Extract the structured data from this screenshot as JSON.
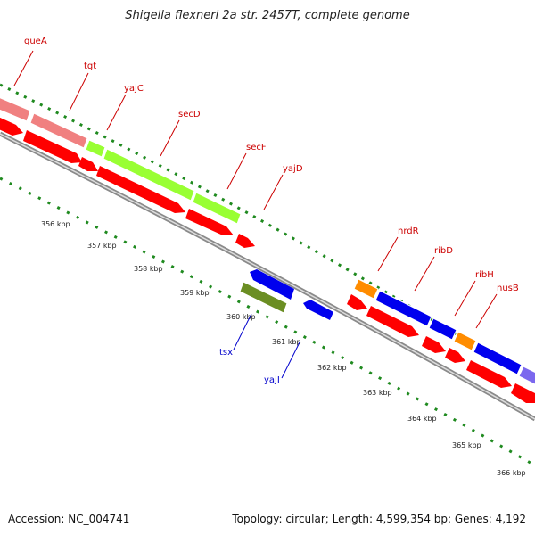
{
  "title": "Shigella flexneri 2a str. 2457T, complete genome",
  "footer": {
    "accession": "Accession: NC_004741",
    "summary": "Topology: circular; Length: 4,599,354 bp; Genes: 4,192"
  },
  "colors": {
    "backbone": "#8a8a8a",
    "dot_track": "#1f8a1f",
    "cds": "#ff0000",
    "gene_pink": "#f08080",
    "gene_lime": "#99ff33",
    "gene_orange": "#ff8c00",
    "gene_blue": "#0000ee",
    "gene_olive": "#6b8e23",
    "gene_purple": "#7b68ee",
    "label_red": "#cc0000",
    "label_blue": "#0000cc"
  },
  "scale_ticks": [
    "356 kbp",
    "357 kbp",
    "358 kbp",
    "359 kbp",
    "360 kbp",
    "361 kbp",
    "362 kbp",
    "363 kbp",
    "364 kbp",
    "365 kbp",
    "366 kbp"
  ],
  "gene_labels": [
    {
      "name": "queA",
      "color": "red"
    },
    {
      "name": "tgt",
      "color": "red"
    },
    {
      "name": "yajC",
      "color": "red"
    },
    {
      "name": "secD",
      "color": "red"
    },
    {
      "name": "secF",
      "color": "red"
    },
    {
      "name": "yajD",
      "color": "red"
    },
    {
      "name": "nrdR",
      "color": "red"
    },
    {
      "name": "ribD",
      "color": "red"
    },
    {
      "name": "ribH",
      "color": "red"
    },
    {
      "name": "nusB",
      "color": "red"
    },
    {
      "name": "tsx",
      "color": "blue"
    },
    {
      "name": "yajI",
      "color": "blue"
    }
  ]
}
